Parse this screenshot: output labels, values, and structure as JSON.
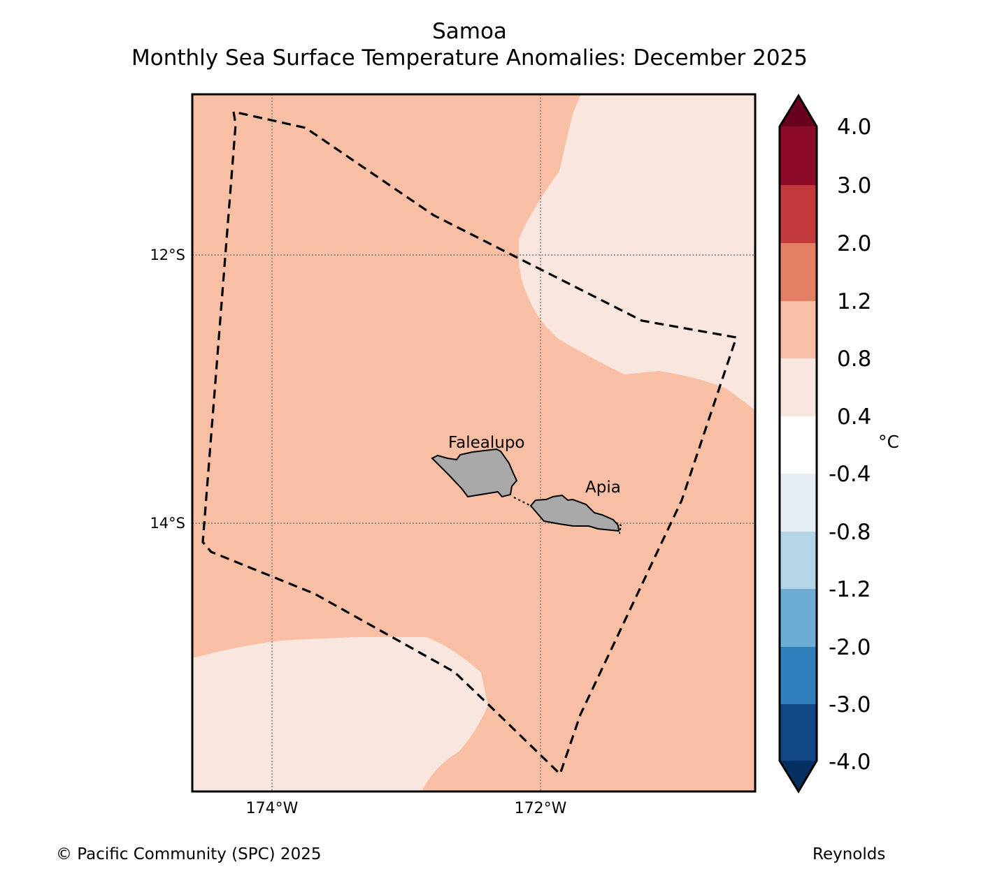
{
  "title": "Samoa",
  "subtitle": "Monthly Sea Surface Temperature Anomalies: December 2025",
  "footer": {
    "copyright": "© Pacific Community (SPC) 2025",
    "source": "Reynolds"
  },
  "map": {
    "lat_labels": [
      "12°S",
      "14°S"
    ],
    "lon_labels": [
      "174°W",
      "172°W"
    ],
    "places": [
      "Falealupo",
      "Apia"
    ],
    "colors": {
      "anomaly_0_8_to_1_2": "#f8bfa4",
      "anomaly_0_4_to_0_8": "#f9e7df",
      "land": "#a9a9a9",
      "border": "#000000"
    }
  },
  "colorbar": {
    "unit": "°C",
    "tick_labels": [
      "4.0",
      "3.0",
      "2.0",
      "1.2",
      "0.8",
      "0.4",
      "-0.4",
      "-0.8",
      "-1.2",
      "-2.0",
      "-3.0",
      "-4.0"
    ],
    "colors_top_to_bottom": [
      "#8b0a27",
      "#c23b3c",
      "#e47f66",
      "#f8bfa4",
      "#f9e7df",
      "#ffffff",
      "#e5edf5",
      "#b4d5e8",
      "#6dadd3",
      "#317fbc",
      "#124785"
    ],
    "extend_high_color": "#67001f",
    "extend_low_color": "#053061"
  },
  "chart_data": {
    "type": "heatmap",
    "title": "Samoa",
    "subtitle": "Monthly Sea Surface Temperature Anomalies: December 2025",
    "variable": "Sea surface temperature anomaly",
    "unit": "°C",
    "levels": [
      -4.0,
      -3.0,
      -2.0,
      -1.2,
      -0.8,
      -0.4,
      0.4,
      0.8,
      1.2,
      2.0,
      3.0,
      4.0
    ],
    "extend": "both",
    "xlabel_ticks": [
      "174°W",
      "172°W"
    ],
    "ylabel_ticks": [
      "12°S",
      "14°S"
    ],
    "regions": [
      {
        "name": "most of domain",
        "anomaly_range": [
          0.8,
          1.2
        ]
      },
      {
        "name": "north-east patch",
        "anomaly_range": [
          0.4,
          0.8
        ]
      },
      {
        "name": "south-west patch",
        "anomaly_range": [
          0.4,
          0.8
        ]
      }
    ],
    "annotations": [
      "Falealupo",
      "Apia"
    ],
    "source": "Reynolds"
  }
}
